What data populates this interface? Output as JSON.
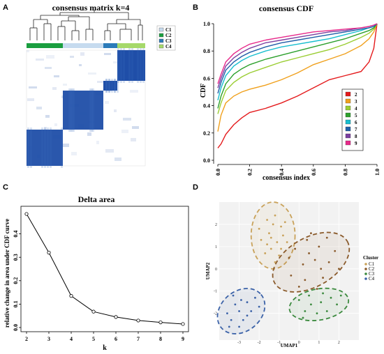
{
  "panels": {
    "A": {
      "letter": "A",
      "title": "consensus matrix k=4",
      "legend": [
        {
          "label": "C1",
          "color": "#c6dbef"
        },
        {
          "label": "C2",
          "color": "#1a9e3f"
        },
        {
          "label": "C3",
          "color": "#2b7bb9"
        },
        {
          "label": "C4",
          "color": "#a6d96a"
        }
      ]
    },
    "B": {
      "letter": "B"
    },
    "C": {
      "letter": "C"
    },
    "D": {
      "letter": "D"
    }
  },
  "chart_data": [
    {
      "panel": "B",
      "type": "line",
      "title": "consensus CDF",
      "xlabel": "consensus index",
      "ylabel": "CDF",
      "xlim": [
        0,
        1
      ],
      "ylim": [
        0,
        1
      ],
      "xticks": [
        "0.0",
        "0.2",
        "0.4",
        "0.6",
        "0.8",
        "1.0"
      ],
      "yticks": [
        "0.0",
        "0.2",
        "0.4",
        "0.6",
        "0.8",
        "1.0"
      ],
      "legend_position": "right",
      "x": [
        0,
        0.02,
        0.05,
        0.1,
        0.15,
        0.2,
        0.3,
        0.4,
        0.5,
        0.6,
        0.7,
        0.8,
        0.9,
        0.95,
        0.98,
        1.0
      ],
      "series": [
        {
          "name": "2",
          "color": "#e41a1c",
          "values": [
            0.09,
            0.12,
            0.19,
            0.26,
            0.31,
            0.35,
            0.38,
            0.42,
            0.47,
            0.53,
            0.59,
            0.62,
            0.65,
            0.72,
            0.82,
            1.0
          ]
        },
        {
          "name": "3",
          "color": "#f0a01c",
          "values": [
            0.21,
            0.33,
            0.42,
            0.47,
            0.5,
            0.52,
            0.55,
            0.59,
            0.64,
            0.7,
            0.74,
            0.78,
            0.84,
            0.89,
            0.94,
            1.0
          ]
        },
        {
          "name": "4",
          "color": "#9acd32",
          "values": [
            0.34,
            0.42,
            0.51,
            0.57,
            0.61,
            0.64,
            0.68,
            0.72,
            0.75,
            0.78,
            0.81,
            0.85,
            0.9,
            0.93,
            0.96,
            1.0
          ]
        },
        {
          "name": "5",
          "color": "#2ca02c",
          "values": [
            0.38,
            0.47,
            0.56,
            0.63,
            0.67,
            0.7,
            0.74,
            0.77,
            0.8,
            0.83,
            0.86,
            0.89,
            0.93,
            0.95,
            0.97,
            1.0
          ]
        },
        {
          "name": "6",
          "color": "#17becf",
          "values": [
            0.44,
            0.53,
            0.62,
            0.69,
            0.73,
            0.76,
            0.8,
            0.83,
            0.85,
            0.87,
            0.89,
            0.92,
            0.95,
            0.97,
            0.98,
            1.0
          ]
        },
        {
          "name": "7",
          "color": "#1f5fa8",
          "values": [
            0.49,
            0.57,
            0.66,
            0.72,
            0.76,
            0.79,
            0.83,
            0.86,
            0.88,
            0.9,
            0.92,
            0.94,
            0.96,
            0.97,
            0.98,
            1.0
          ]
        },
        {
          "name": "8",
          "color": "#7b3fa0",
          "values": [
            0.53,
            0.6,
            0.69,
            0.75,
            0.79,
            0.82,
            0.86,
            0.88,
            0.9,
            0.92,
            0.94,
            0.95,
            0.97,
            0.98,
            0.99,
            1.0
          ]
        },
        {
          "name": "9",
          "color": "#e7298a",
          "values": [
            0.56,
            0.63,
            0.72,
            0.78,
            0.82,
            0.85,
            0.88,
            0.9,
            0.92,
            0.94,
            0.95,
            0.96,
            0.97,
            0.98,
            0.99,
            1.0
          ]
        }
      ]
    },
    {
      "panel": "C",
      "type": "line",
      "title": "Delta area",
      "xlabel": "k",
      "ylabel": "relative change in area under CDF curve",
      "x": [
        2,
        3,
        4,
        5,
        6,
        7,
        8,
        9
      ],
      "values": [
        0.485,
        0.32,
        0.135,
        0.068,
        0.045,
        0.03,
        0.022,
        0.015
      ],
      "xlim": [
        2,
        9
      ],
      "ylim": [
        0,
        0.5
      ],
      "yticks": [
        "0.0",
        "0.1",
        "0.2",
        "0.3",
        "0.4"
      ],
      "xticks": [
        "2",
        "3",
        "4",
        "5",
        "6",
        "7",
        "8",
        "9"
      ]
    },
    {
      "panel": "D",
      "type": "scatter",
      "xlabel": "UMAP1",
      "ylabel": "UMAP2",
      "legend_title": "Cluster",
      "xlim": [
        -4,
        3
      ],
      "ylim": [
        -3.2,
        3
      ],
      "xticks": [
        "-3",
        "-2",
        "-1",
        "0",
        "1",
        "2"
      ],
      "yticks": [
        "2",
        "1",
        "0",
        "-1",
        "-2"
      ],
      "series": [
        {
          "name": "C1",
          "color": "#c9a25a",
          "ellipse": {
            "cx": -1.3,
            "cy": 1.5,
            "rx": 1.1,
            "ry": 1.5,
            "angle": 0
          },
          "points": [
            [
              -1.6,
              2.2
            ],
            [
              -1.2,
              2.4
            ],
            [
              -0.9,
              1.9
            ],
            [
              -1.5,
              1.6
            ],
            [
              -1.9,
              1.3
            ],
            [
              -1.1,
              1.2
            ],
            [
              -0.8,
              1.5
            ],
            [
              -1.4,
              0.9
            ],
            [
              -1.7,
              0.7
            ],
            [
              -1.0,
              0.6
            ],
            [
              -1.3,
              2.0
            ],
            [
              -0.7,
              2.1
            ],
            [
              -2.0,
              1.8
            ],
            [
              -1.2,
              0.3
            ],
            [
              -0.9,
              0.9
            ],
            [
              -1.6,
              1.1
            ],
            [
              -1.4,
              1.4
            ],
            [
              -0.6,
              1.2
            ]
          ]
        },
        {
          "name": "C2",
          "color": "#8a5a2b",
          "ellipse": {
            "cx": 0.6,
            "cy": 0.3,
            "rx": 2.1,
            "ry": 1.1,
            "angle": -30
          },
          "points": [
            [
              -0.2,
              0.9
            ],
            [
              0.4,
              1.3
            ],
            [
              1.0,
              1.0
            ],
            [
              0.2,
              0.2
            ],
            [
              0.8,
              0.4
            ],
            [
              1.5,
              0.3
            ],
            [
              -0.4,
              -0.3
            ],
            [
              0.3,
              -0.5
            ],
            [
              1.2,
              -0.4
            ],
            [
              1.8,
              0.8
            ],
            [
              0.6,
              1.6
            ],
            [
              -0.5,
              0.5
            ],
            [
              1.4,
              1.4
            ],
            [
              2.0,
              0.0
            ],
            [
              0.0,
              -0.8
            ],
            [
              0.9,
              -0.9
            ],
            [
              0.5,
              0.7
            ],
            [
              1.1,
              0.0
            ]
          ]
        },
        {
          "name": "C3",
          "color": "#3b8a3e",
          "ellipse": {
            "cx": 1.0,
            "cy": -1.6,
            "rx": 1.5,
            "ry": 0.7,
            "angle": -10
          },
          "points": [
            [
              0.0,
              -1.4
            ],
            [
              0.5,
              -1.2
            ],
            [
              1.1,
              -1.5
            ],
            [
              1.6,
              -1.3
            ],
            [
              0.3,
              -1.9
            ],
            [
              0.9,
              -2.0
            ],
            [
              1.4,
              -1.9
            ],
            [
              1.9,
              -1.6
            ],
            [
              0.6,
              -1.6
            ],
            [
              1.2,
              -1.1
            ],
            [
              2.1,
              -1.2
            ],
            [
              0.2,
              -2.2
            ]
          ]
        },
        {
          "name": "C4",
          "color": "#3b62a8",
          "ellipse": {
            "cx": -2.9,
            "cy": -1.9,
            "rx": 1.3,
            "ry": 0.9,
            "angle": -40
          },
          "points": [
            [
              -3.4,
              -2.3
            ],
            [
              -3.0,
              -1.9
            ],
            [
              -2.6,
              -1.5
            ],
            [
              -3.2,
              -1.6
            ],
            [
              -2.8,
              -2.3
            ],
            [
              -2.4,
              -1.9
            ],
            [
              -3.6,
              -2.0
            ],
            [
              -2.2,
              -1.3
            ],
            [
              -3.0,
              -2.6
            ],
            [
              -2.6,
              -2.1
            ],
            [
              -3.3,
              -1.2
            ],
            [
              -2.0,
              -1.7
            ],
            [
              -2.9,
              -1.4
            ],
            [
              -3.5,
              -2.6
            ]
          ]
        }
      ]
    }
  ]
}
